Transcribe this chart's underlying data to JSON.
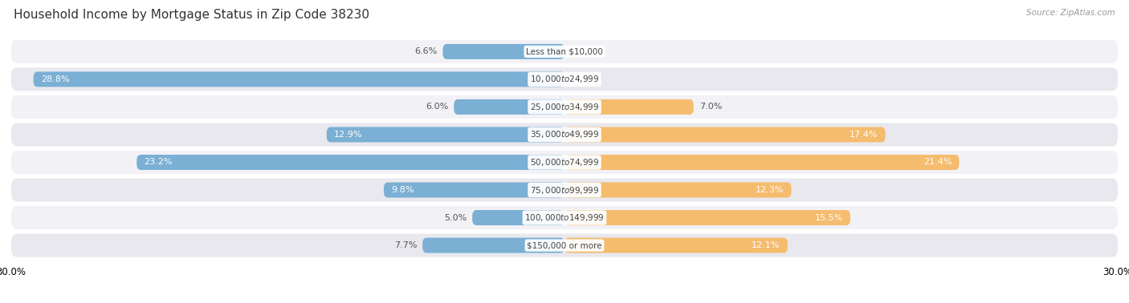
{
  "title": "Household Income by Mortgage Status in Zip Code 38230",
  "source": "Source: ZipAtlas.com",
  "categories": [
    "Less than $10,000",
    "$10,000 to $24,999",
    "$25,000 to $34,999",
    "$35,000 to $49,999",
    "$50,000 to $74,999",
    "$75,000 to $99,999",
    "$100,000 to $149,999",
    "$150,000 or more"
  ],
  "without_mortgage": [
    6.6,
    28.8,
    6.0,
    12.9,
    23.2,
    9.8,
    5.0,
    7.7
  ],
  "with_mortgage": [
    0.0,
    0.0,
    7.0,
    17.4,
    21.4,
    12.3,
    15.5,
    12.1
  ],
  "color_without": "#7bafd4",
  "color_with": "#f5bc6e",
  "bg_color": "#e8e8ee",
  "bg_color2": "#f2f2f6",
  "fig_bg": "#ffffff",
  "xlim": 30.0,
  "title_fontsize": 11,
  "label_fontsize": 8,
  "category_fontsize": 7.5,
  "legend_fontsize": 8.5,
  "axis_label_fontsize": 8.5
}
